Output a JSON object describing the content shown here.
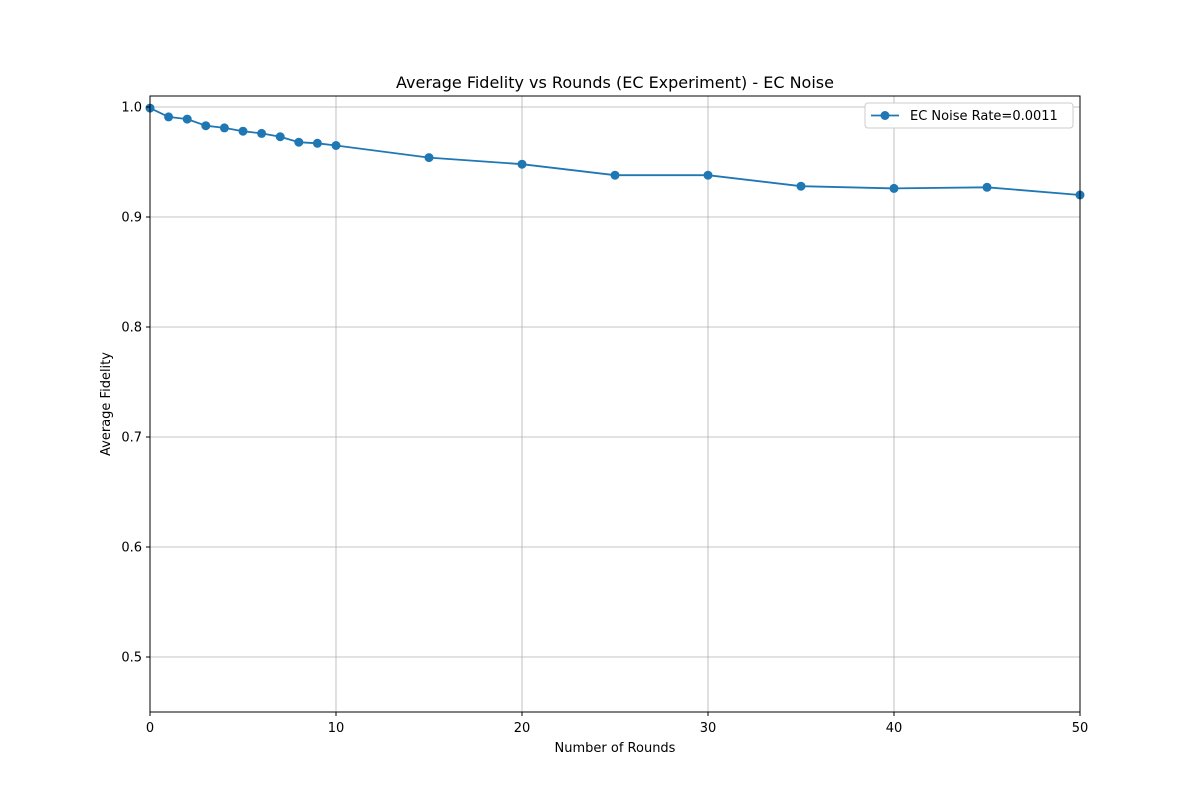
{
  "chart_data": {
    "type": "line",
    "title": "Average Fidelity vs Rounds (EC Experiment) - EC Noise",
    "xlabel": "Number of Rounds",
    "ylabel": "Average Fidelity",
    "xlim": [
      0,
      50
    ],
    "ylim": [
      0.45,
      1.01
    ],
    "xticks": [
      0,
      10,
      20,
      30,
      40,
      50
    ],
    "xtick_labels": [
      "0",
      "10",
      "20",
      "30",
      "40",
      "50"
    ],
    "yticks": [
      0.5,
      0.6,
      0.7,
      0.8,
      0.9,
      1.0
    ],
    "ytick_labels": [
      "0.5",
      "0.6",
      "0.7",
      "0.8",
      "0.9",
      "1.0"
    ],
    "grid": true,
    "legend_position": "top-right",
    "series": [
      {
        "name": "EC Noise Rate=0.0011",
        "color": "#1f77b4",
        "marker": "circle",
        "x": [
          0,
          1,
          2,
          3,
          4,
          5,
          6,
          7,
          8,
          9,
          10,
          15,
          20,
          25,
          30,
          35,
          40,
          45,
          50
        ],
        "y": [
          0.999,
          0.991,
          0.989,
          0.983,
          0.981,
          0.978,
          0.976,
          0.973,
          0.968,
          0.967,
          0.965,
          0.954,
          0.948,
          0.938,
          0.938,
          0.928,
          0.926,
          0.927,
          0.92
        ]
      }
    ]
  }
}
